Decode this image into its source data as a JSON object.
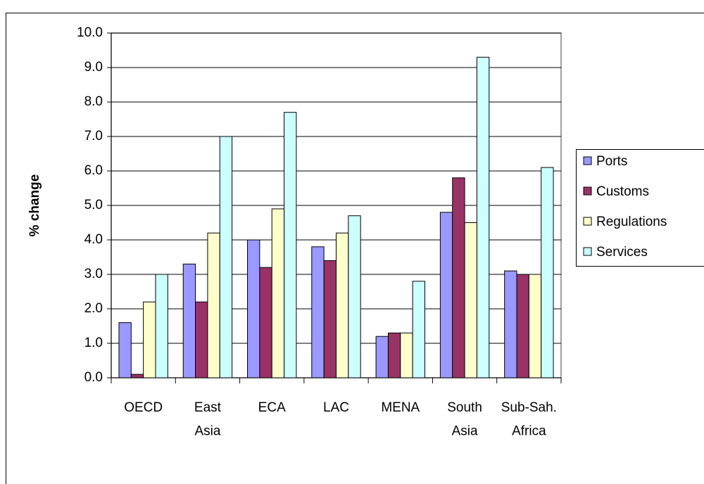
{
  "chart_data": {
    "type": "bar",
    "y_label": "% change",
    "categories": [
      "OECD",
      "East Asia",
      "ECA",
      "LAC",
      "MENA",
      "South Asia",
      "Sub-Sah. Africa"
    ],
    "series": [
      {
        "name": "Ports",
        "color": "#9999ff",
        "values": [
          1.6,
          3.3,
          4.0,
          3.8,
          1.2,
          4.8,
          3.1
        ]
      },
      {
        "name": "Customs",
        "color": "#993366",
        "values": [
          0.1,
          2.2,
          3.2,
          3.4,
          1.3,
          5.8,
          3.0
        ]
      },
      {
        "name": "Regulations",
        "color": "#ffffcc",
        "values": [
          2.2,
          4.2,
          4.9,
          4.2,
          1.3,
          4.5,
          3.0
        ]
      },
      {
        "name": "Services",
        "color": "#ccffff",
        "values": [
          3.0,
          7.0,
          7.7,
          4.7,
          2.8,
          9.3,
          6.1
        ]
      }
    ],
    "ylim": [
      0,
      10
    ],
    "yticks": [
      {
        "value": 0,
        "label": "0.0"
      },
      {
        "value": 1,
        "label": "1.0"
      },
      {
        "value": 2,
        "label": "2.0"
      },
      {
        "value": 3,
        "label": "3.0"
      },
      {
        "value": 4,
        "label": "4.0"
      },
      {
        "value": 5,
        "label": "5.0"
      },
      {
        "value": 6,
        "label": "6.0"
      },
      {
        "value": 7,
        "label": "7.0"
      },
      {
        "value": 8,
        "label": "8.0"
      },
      {
        "value": 9,
        "label": "9.0"
      },
      {
        "value": 10,
        "label": "10.0"
      }
    ],
    "grid": true,
    "legend": "right"
  }
}
